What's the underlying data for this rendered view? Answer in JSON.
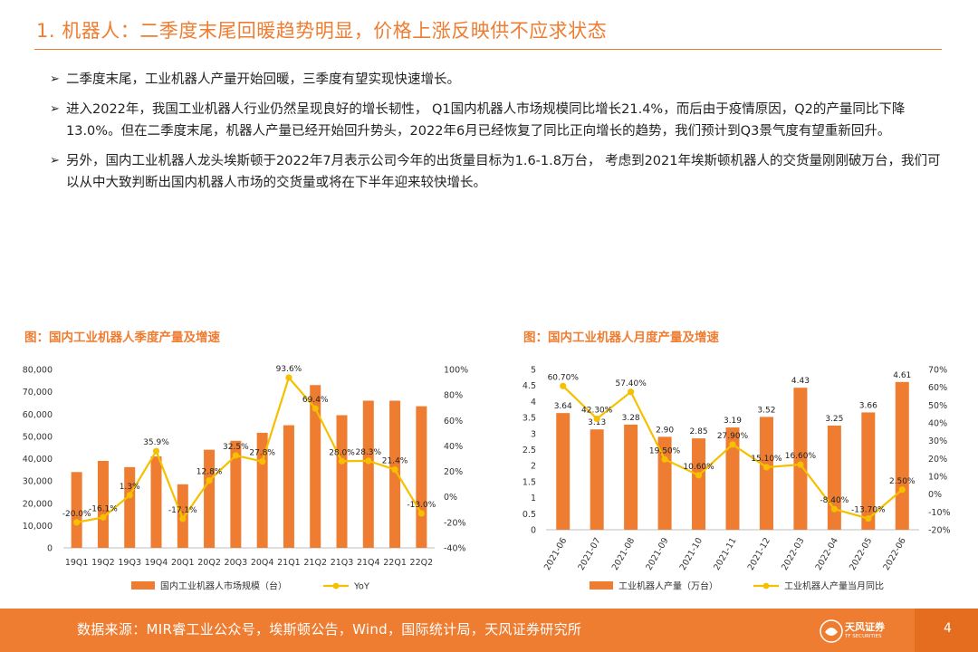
{
  "slide": {
    "title": "1. 机器人：二季度末尾回暖趋势明显，价格上涨反映供不应求状态",
    "bullets": [
      "二季度末尾，工业机器人产量开始回暖，三季度有望实现快速增长。",
      "进入2022年，我国工业机器人行业仍然呈现良好的增长韧性， Q1国内机器人市场规模同比增长21.4%，而后由于疫情原因，Q2的产量同比下降13.0%。但在二季度末尾，机器人产量已经开始回升势头，2022年6月已经恢复了同比正向增长的趋势，我们预计到Q3景气度有望重新回升。",
      "另外，国内工业机器人龙头埃斯顿于2022年7月表示公司今年的出货量目标为1.6-1.8万台， 考虑到2021年埃斯顿机器人的交货量刚刚破万台，我们可以从中大致判断出国内机器人市场的交货量或将在下半年迎来较快增长。"
    ],
    "bullet_marker": "➢"
  },
  "colors": {
    "accent": "#ee7d31",
    "bar": "#ee7d31",
    "line": "#f5c000",
    "axis": "#888888"
  },
  "chart_data": [
    {
      "type": "bar+line",
      "title": "图：国内工业机器人季度产量及增速",
      "categories": [
        "19Q1",
        "19Q2",
        "19Q3",
        "19Q4",
        "20Q1",
        "20Q2",
        "20Q3",
        "20Q4",
        "21Q1",
        "21Q2",
        "21Q3",
        "21Q4",
        "22Q1",
        "22Q2"
      ],
      "series": [
        {
          "name": "国内工业机器人市场规模（台）",
          "type": "bar",
          "axis": "left",
          "values": [
            34000,
            39000,
            36200,
            41000,
            28500,
            44000,
            48000,
            51600,
            55000,
            73000,
            59500,
            66000,
            66000,
            63500
          ]
        },
        {
          "name": "YoY",
          "type": "line",
          "axis": "right",
          "values": [
            -20.0,
            -16.1,
            1.3,
            35.9,
            -17.1,
            12.8,
            32.5,
            27.8,
            93.6,
            69.4,
            28.0,
            28.3,
            21.4,
            -13.0
          ],
          "labels": [
            "-20.0%",
            "-16.1%",
            "1.3%",
            "35.9%",
            "-17.1%",
            "12.8%",
            "32.5%",
            "27.8%",
            "93.6%",
            "69.4%",
            "28.0%",
            "28.3%",
            "21.4%",
            "-13.0%"
          ]
        }
      ],
      "y_left": {
        "min": 0,
        "max": 80000,
        "ticks": [
          "0",
          "10,000",
          "20,000",
          "30,000",
          "40,000",
          "50,000",
          "60,000",
          "70,000",
          "80,000"
        ]
      },
      "y_right": {
        "min": -40,
        "max": 100,
        "ticks": [
          "-40%",
          "-20%",
          "0%",
          "20%",
          "40%",
          "60%",
          "80%",
          "100%"
        ]
      },
      "legend": [
        "国内工业机器人市场规模（台）",
        "YoY"
      ]
    },
    {
      "type": "bar+line",
      "title": "图：国内工业机器人月度产量及增速",
      "categories": [
        "2021-06",
        "2021-07",
        "2021-08",
        "2021-09",
        "2021-10",
        "2021-11",
        "2021-12",
        "2022-03",
        "2022-04",
        "2022-05",
        "2022-06"
      ],
      "series": [
        {
          "name": "工业机器人产量（万台）",
          "type": "bar",
          "axis": "left",
          "values": [
            3.64,
            3.13,
            3.28,
            2.9,
            2.85,
            3.19,
            3.52,
            4.43,
            3.25,
            3.66,
            4.61
          ],
          "labels": [
            "3.64",
            "3.13",
            "3.28",
            "2.90",
            "2.85",
            "3.19",
            "3.52",
            "4.43",
            "3.25",
            "3.66",
            "4.61"
          ]
        },
        {
          "name": "工业机器人产量当月同比",
          "type": "line",
          "axis": "right",
          "values": [
            60.7,
            42.3,
            57.4,
            19.5,
            10.6,
            27.9,
            15.1,
            16.6,
            -8.4,
            -13.7,
            2.5
          ],
          "labels": [
            "60.70%",
            "42.30%",
            "57.40%",
            "19.50%",
            "10.60%",
            "27.90%",
            "15.10%",
            "16.60%",
            "-8.40%",
            "-13.70%",
            "2.50%"
          ]
        }
      ],
      "y_left": {
        "min": 0,
        "max": 5,
        "ticks": [
          "0",
          "0.5",
          "1",
          "1.5",
          "2",
          "2.5",
          "3",
          "3.5",
          "4",
          "4.5",
          "5"
        ]
      },
      "y_right": {
        "min": -20,
        "max": 70,
        "ticks": [
          "-20%",
          "-10%",
          "0%",
          "10%",
          "20%",
          "30%",
          "40%",
          "50%",
          "60%",
          "70%"
        ]
      },
      "legend": [
        "工业机器人产量（万台）",
        "工业机器人产量当月同比"
      ]
    }
  ],
  "footer": {
    "source": "数据来源：MIR睿工业公众号，埃斯顿公告，Wind，国际统计局，天风证券研究所",
    "logo_name": "天风证券",
    "logo_sub": "TF SECURITIES",
    "page_number": "4"
  }
}
